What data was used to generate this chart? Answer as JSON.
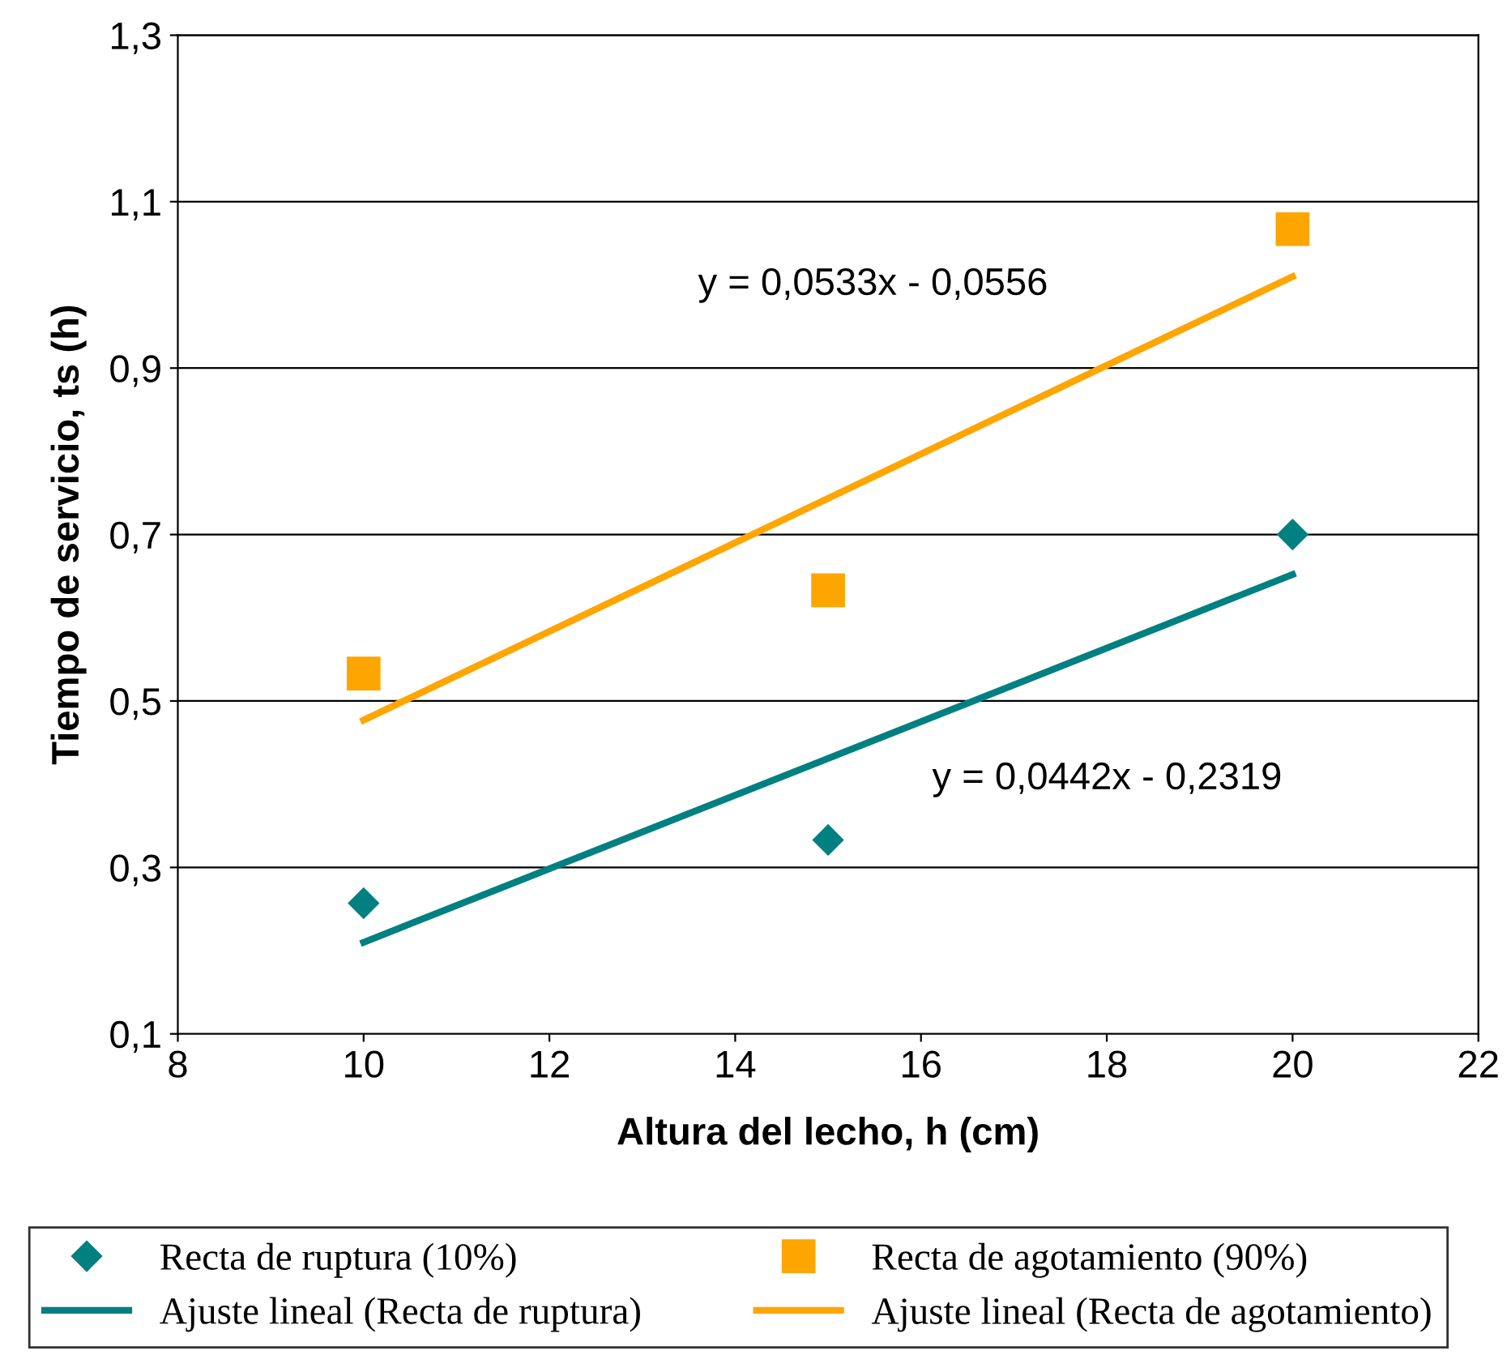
{
  "chart_data": {
    "type": "scatter",
    "xlabel": "Altura del lecho, h (cm)",
    "ylabel": "Tiempo de servicio, ts (h)",
    "series": [
      {
        "name": "Recta de ruptura (10%)",
        "marker": "diamond",
        "color": "#008080",
        "x": [
          10,
          15,
          20
        ],
        "values": [
          0.257,
          0.333,
          0.7
        ]
      },
      {
        "name": "Recta de agotamiento (90%)",
        "marker": "square",
        "color": "#ffa500",
        "x": [
          10,
          15,
          20
        ],
        "values": [
          0.533,
          0.633,
          1.067
        ]
      },
      {
        "name": "Ajuste lineal (Recta de ruptura)",
        "type": "line",
        "color": "#008080",
        "x": [
          10,
          20
        ],
        "values": [
          0.21,
          0.652
        ]
      },
      {
        "name": "Ajuste lineal (Recta de agotamiento)",
        "type": "line",
        "color": "#ffa500",
        "x": [
          10,
          20
        ],
        "values": [
          0.477,
          1.01
        ]
      }
    ],
    "annotations": [
      "y = 0,0533x - 0,0556",
      "y = 0,0442x - 0,2319"
    ],
    "xlim": [
      8,
      22
    ],
    "xticks": [
      8,
      10,
      12,
      14,
      16,
      18,
      20,
      22
    ],
    "ylim": [
      0.1,
      1.3
    ],
    "yticks": [
      {
        "value": 0.1,
        "label": "0,1"
      },
      {
        "value": 0.3,
        "label": "0,3"
      },
      {
        "value": 0.5,
        "label": "0,5"
      },
      {
        "value": 0.7,
        "label": "0,7"
      },
      {
        "value": 0.9,
        "label": "0,9"
      },
      {
        "value": 1.1,
        "label": "1,1"
      },
      {
        "value": 1.3,
        "label": "1,3"
      }
    ],
    "grid": "y",
    "legend": "bottom"
  }
}
